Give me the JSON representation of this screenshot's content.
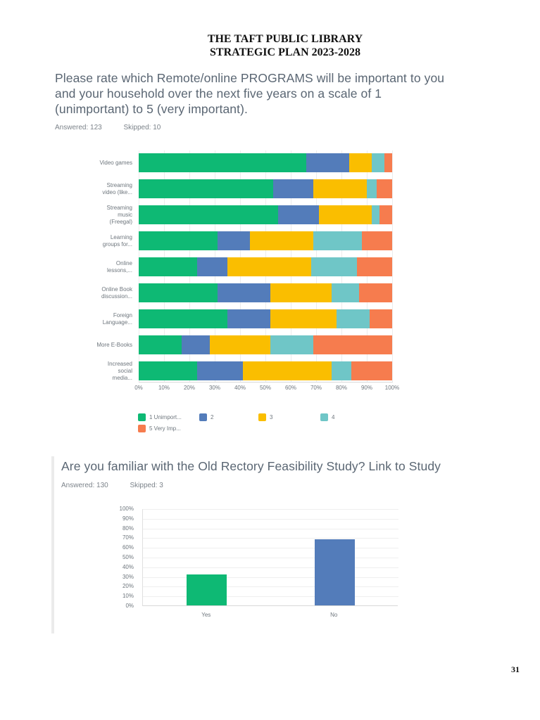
{
  "header": {
    "line1": "THE TAFT PUBLIC LIBRARY",
    "line2": "STRATEGIC PLAN 2023-2028"
  },
  "page": {
    "number": "31"
  },
  "q1": {
    "title": "Please rate which Remote/online PROGRAMS will be important to you\nand your household over the next five years on a scale of 1\n(unimportant) to 5 (very important).",
    "answered": "Answered: 123",
    "skipped": "Skipped: 10"
  },
  "q2": {
    "title": "Are you familiar with the Old Rectory Feasibility Study? Link to Study",
    "answered": "Answered: 130",
    "skipped": "Skipped: 3"
  },
  "colors": {
    "scale1_green": "#0EB974",
    "scale2_blue": "#537CBA",
    "scale3_yellow": "#FABE00",
    "scale4_teal": "#6FC6C7",
    "scale5_orange": "#F67C4E"
  },
  "chart_data": [
    {
      "type": "bar",
      "variant": "horizontal-stacked",
      "title": "Remote/online program importance ratings (% of respondents)",
      "categories": [
        "Video games",
        "Streaming\nvideo (like...",
        "Streaming\nmusic\n(Freegal)",
        "Learning\ngroups for...",
        "Online\nlessons,...",
        "Online Book\ndiscussion...",
        "Foreign\nLanguage...",
        "More E-Books",
        "Increased\nsocial\nmedia..."
      ],
      "series": [
        {
          "name": "1 Unimport...",
          "color": "#0EB974",
          "values": [
            66,
            53,
            55,
            31,
            23,
            31,
            35,
            17,
            23
          ]
        },
        {
          "name": "2",
          "color": "#537CBA",
          "values": [
            17,
            16,
            16,
            13,
            12,
            21,
            17,
            11,
            18
          ]
        },
        {
          "name": "3",
          "color": "#FABE00",
          "values": [
            9,
            21,
            21,
            25,
            33,
            24,
            26,
            24,
            35
          ]
        },
        {
          "name": "4",
          "color": "#6FC6C7",
          "values": [
            5,
            4,
            3,
            19,
            18,
            11,
            13,
            17,
            8
          ]
        },
        {
          "name": "5 Very Imp...",
          "color": "#F67C4E",
          "values": [
            3,
            6,
            5,
            12,
            14,
            13,
            9,
            31,
            16
          ]
        }
      ],
      "x_ticks": [
        "0%",
        "10%",
        "20%",
        "30%",
        "40%",
        "50%",
        "60%",
        "70%",
        "80%",
        "90%",
        "100%"
      ],
      "xlim": [
        0,
        100
      ],
      "grid": true,
      "legend_position": "bottom"
    },
    {
      "type": "bar",
      "variant": "vertical",
      "title": "Familiar with Old Rectory Feasibility Study (% of respondents)",
      "categories": [
        "Yes",
        "No"
      ],
      "values": [
        32,
        68
      ],
      "colors": [
        "#0EB974",
        "#537CBA"
      ],
      "y_ticks": [
        "0%",
        "10%",
        "20%",
        "30%",
        "40%",
        "50%",
        "60%",
        "70%",
        "80%",
        "90%",
        "100%"
      ],
      "ylim": [
        0,
        100
      ],
      "grid": true
    }
  ]
}
